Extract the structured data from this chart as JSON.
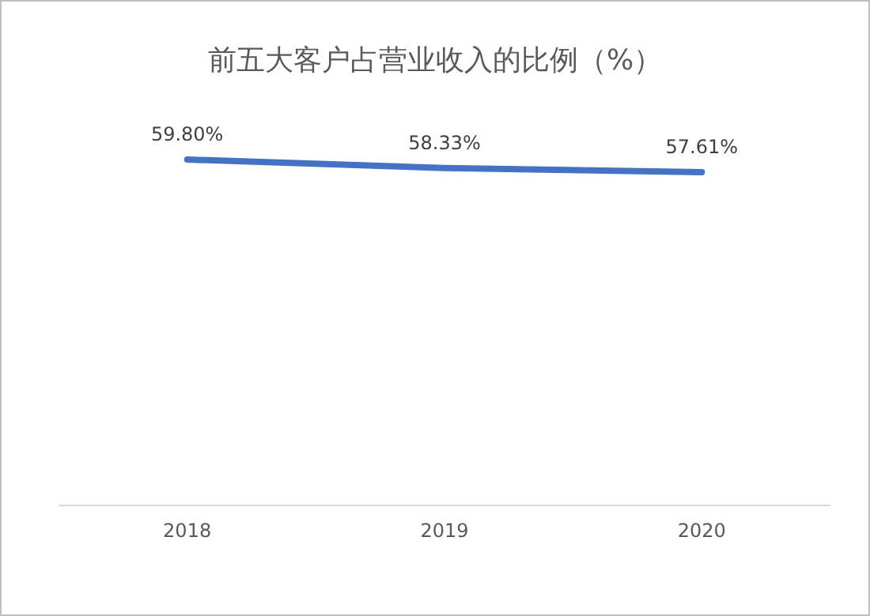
{
  "chart_data": {
    "type": "line",
    "title": "前五大客户占营业收入的比例（%）",
    "categories": [
      "2018",
      "2019",
      "2020"
    ],
    "series": [
      {
        "color": "#4472c4",
        "values": [
          59.8,
          58.33,
          57.61
        ],
        "value_labels": [
          "59.80%",
          "58.33%",
          "57.61%"
        ]
      }
    ],
    "marker": "none",
    "line_style": "solid"
  }
}
